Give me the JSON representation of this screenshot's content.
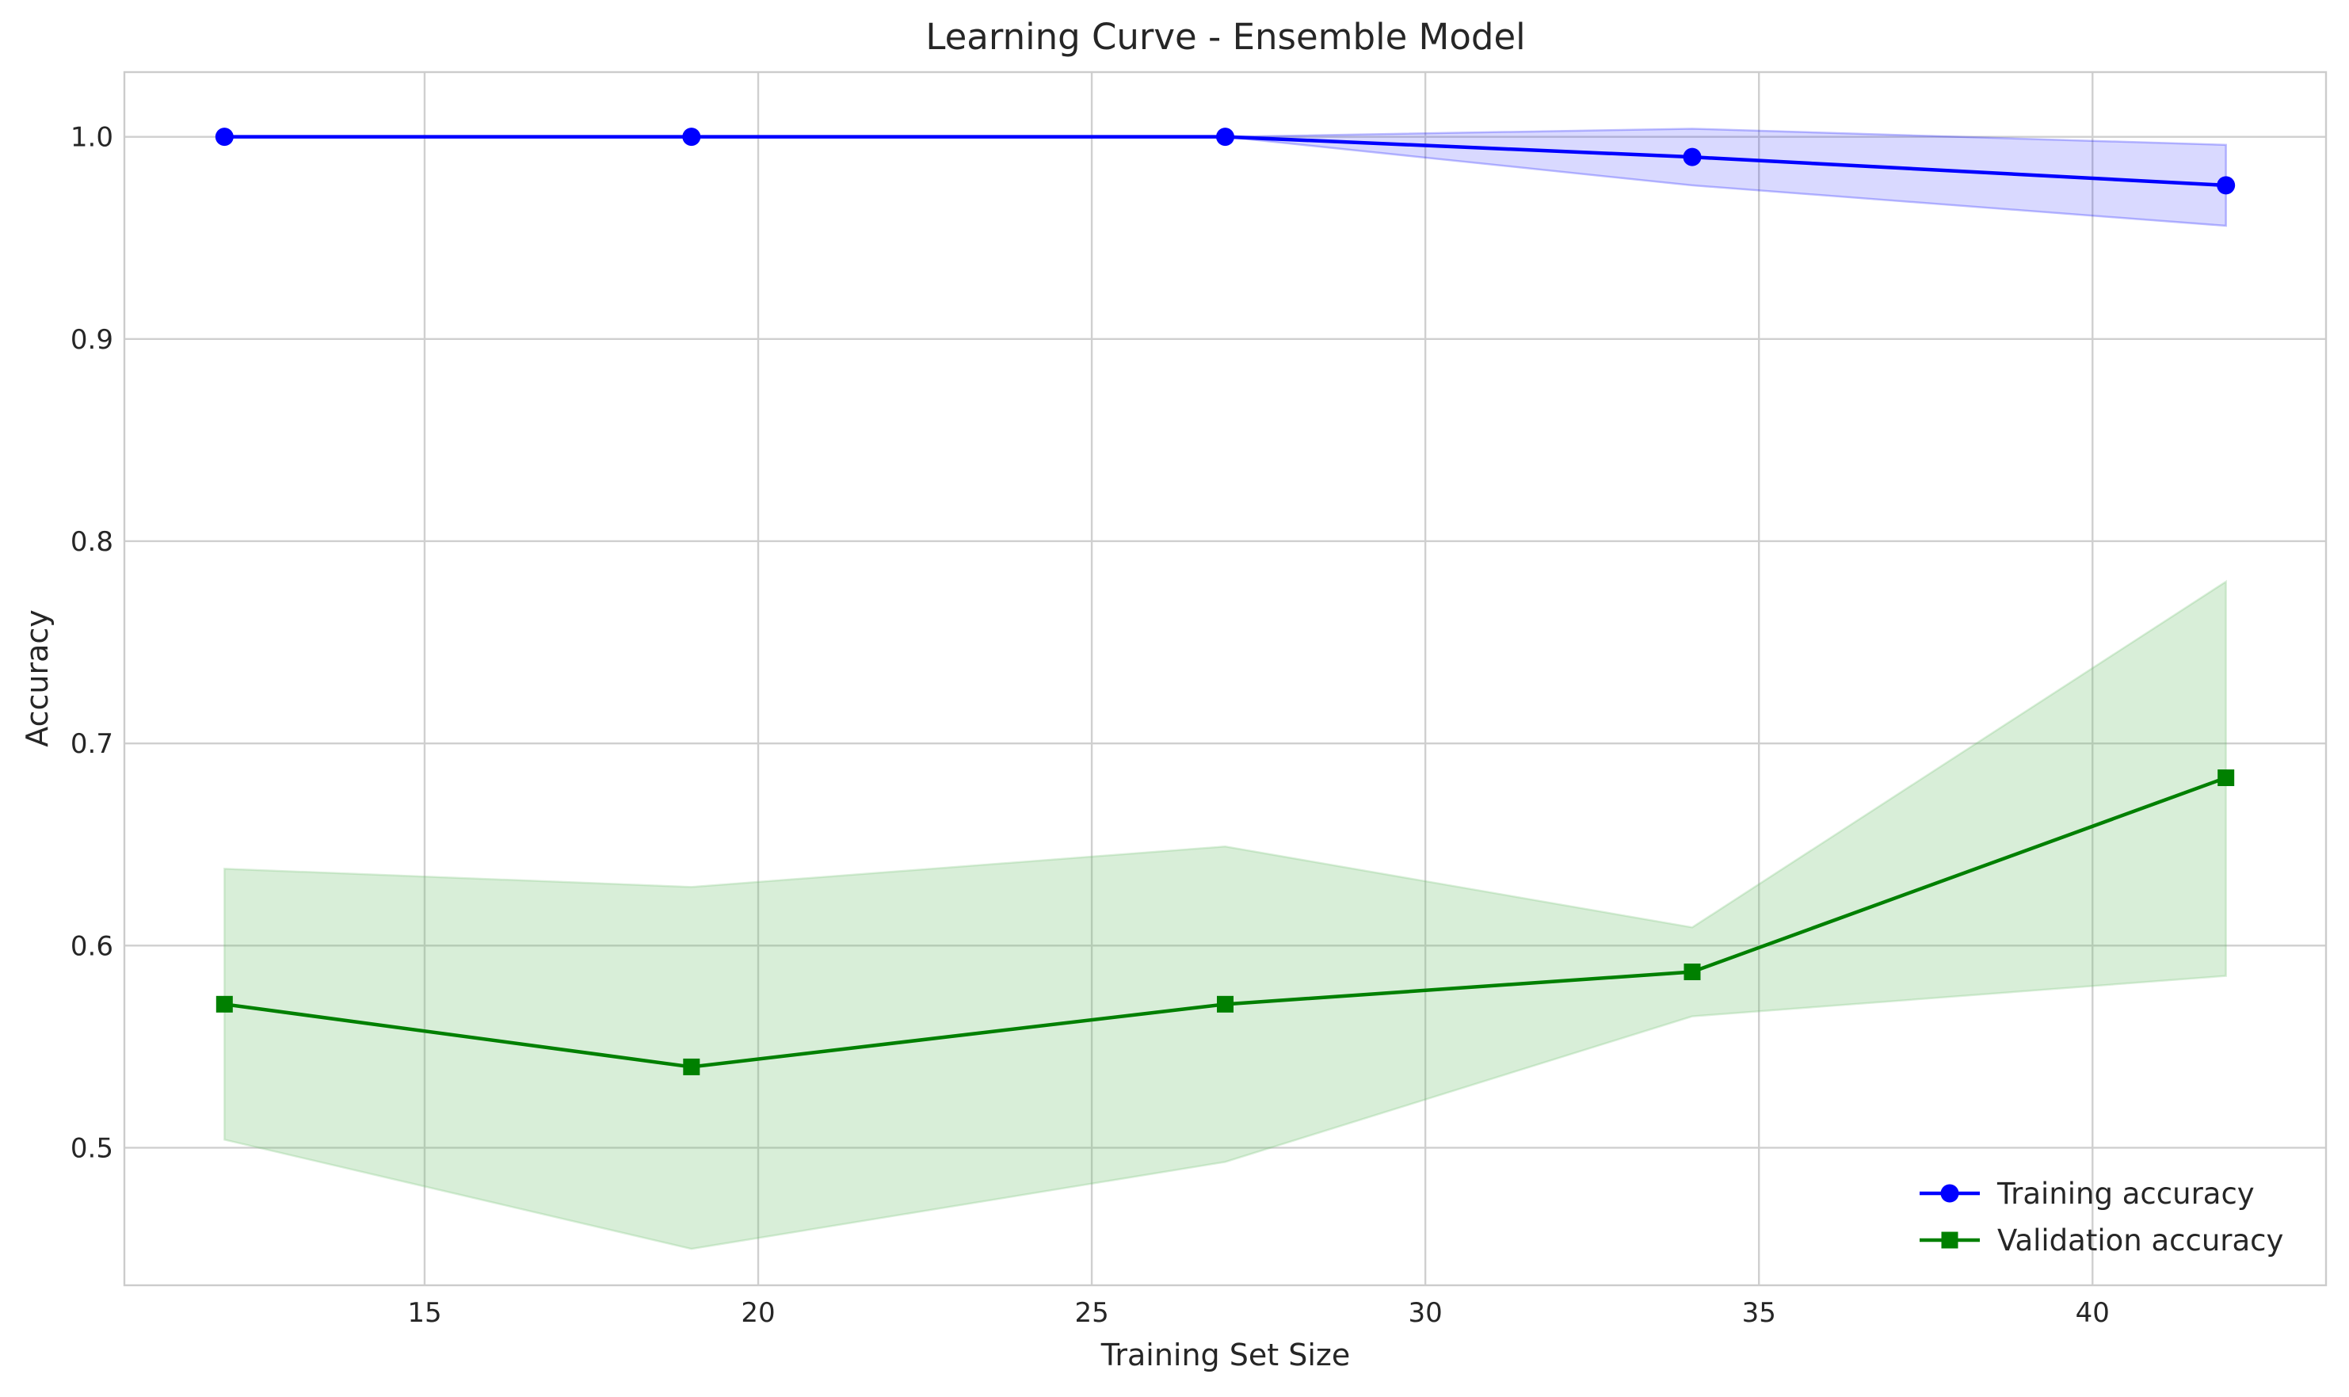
{
  "chart_data": {
    "type": "line",
    "title": "Learning Curve - Ensemble Model",
    "xlabel": "Training Set Size",
    "ylabel": "Accuracy",
    "xlim": [
      10.5,
      43.5
    ],
    "ylim": [
      0.432,
      1.032
    ],
    "xticks": [
      15,
      20,
      25,
      30,
      35,
      40
    ],
    "yticks": [
      0.5,
      0.6,
      0.7,
      0.8,
      0.9,
      1.0
    ],
    "ytick_labels": [
      "0.5",
      "0.6",
      "0.7",
      "0.8",
      "0.9",
      "1.0"
    ],
    "grid": true,
    "legend_position": "lower-right",
    "x": [
      12,
      19,
      27,
      34,
      42
    ],
    "series": [
      {
        "name": "Training accuracy",
        "values": [
          1.0,
          1.0,
          1.0,
          0.99,
          0.976
        ],
        "band_upper": [
          1.0,
          1.0,
          1.0,
          1.004,
          0.996
        ],
        "band_lower": [
          1.0,
          1.0,
          1.0,
          0.976,
          0.956
        ],
        "color": "#0000ff",
        "band_color": "#0000ff",
        "marker": "circle"
      },
      {
        "name": "Validation accuracy",
        "values": [
          0.571,
          0.54,
          0.571,
          0.587,
          0.683
        ],
        "band_upper": [
          0.638,
          0.629,
          0.649,
          0.609,
          0.78
        ],
        "band_lower": [
          0.504,
          0.45,
          0.493,
          0.565,
          0.585
        ],
        "color": "#008000",
        "band_color": "#6fbf6f",
        "marker": "square"
      }
    ]
  }
}
